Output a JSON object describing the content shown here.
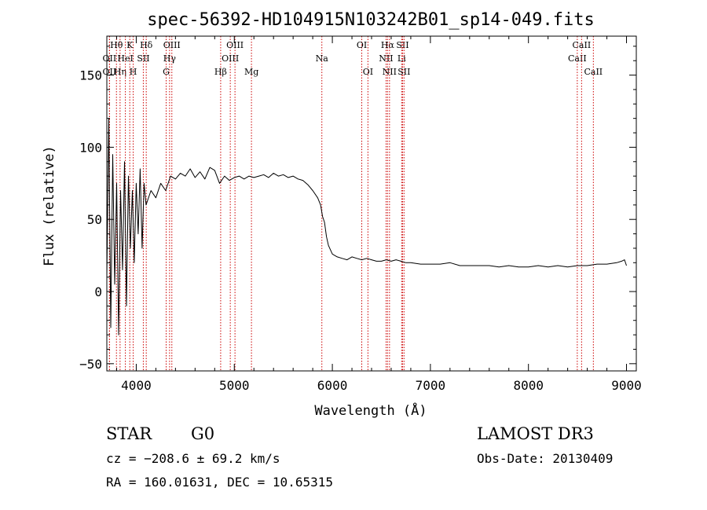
{
  "chart_data": {
    "type": "line",
    "title": "spec-56392-HD104915N103242B01_sp14-049.fits",
    "xlabel": "Wavelength (Å)",
    "ylabel": "Flux (relative)",
    "xlim": [
      3700,
      9100
    ],
    "ylim": [
      -55,
      177
    ],
    "xticks": [
      4000,
      5000,
      6000,
      7000,
      8000,
      9000
    ],
    "xtick_labels": [
      "4000",
      "5000",
      "6000",
      "7000",
      "8000",
      "9000"
    ],
    "yticks": [
      -50,
      0,
      50,
      100,
      150
    ],
    "ytick_labels": [
      "−50",
      "0",
      "50",
      "100",
      "150"
    ],
    "grid": false,
    "series": [
      {
        "name": "Flux",
        "x": [
          3700,
          3720,
          3740,
          3760,
          3780,
          3800,
          3820,
          3840,
          3860,
          3880,
          3900,
          3920,
          3940,
          3960,
          3980,
          4000,
          4020,
          4040,
          4060,
          4080,
          4100,
          4150,
          4200,
          4250,
          4300,
          4350,
          4400,
          4450,
          4500,
          4550,
          4600,
          4650,
          4700,
          4750,
          4800,
          4850,
          4900,
          4950,
          5000,
          5050,
          5100,
          5150,
          5200,
          5250,
          5300,
          5350,
          5400,
          5450,
          5500,
          5550,
          5600,
          5650,
          5700,
          5750,
          5800,
          5850,
          5880,
          5900,
          5920,
          5940,
          5960,
          5980,
          6000,
          6050,
          6100,
          6150,
          6200,
          6250,
          6300,
          6350,
          6400,
          6450,
          6500,
          6550,
          6600,
          6650,
          6700,
          6750,
          6800,
          6900,
          7000,
          7100,
          7200,
          7300,
          7400,
          7500,
          7600,
          7700,
          7800,
          7900,
          8000,
          8100,
          8200,
          8300,
          8400,
          8500,
          8600,
          8700,
          8800,
          8900,
          8950,
          8980,
          9000
        ],
        "y": [
          10,
          120,
          -25,
          95,
          5,
          75,
          -30,
          70,
          15,
          90,
          -10,
          80,
          30,
          70,
          20,
          75,
          40,
          85,
          30,
          75,
          60,
          70,
          65,
          75,
          70,
          80,
          78,
          82,
          80,
          85,
          79,
          83,
          78,
          86,
          84,
          75,
          80,
          77,
          79,
          80,
          78,
          80,
          79,
          80,
          81,
          79,
          82,
          80,
          81,
          79,
          80,
          78,
          77,
          74,
          70,
          65,
          60,
          52,
          48,
          38,
          32,
          29,
          26,
          24,
          23,
          22,
          24,
          23,
          22,
          23,
          22,
          21,
          21,
          22,
          21,
          22,
          21,
          20,
          20,
          19,
          19,
          19,
          20,
          18,
          18,
          18,
          18,
          17,
          18,
          17,
          17,
          18,
          17,
          18,
          17,
          18,
          18,
          19,
          19,
          20,
          21,
          22,
          18
        ]
      }
    ],
    "line_markers": [
      {
        "name": "Hθ",
        "x": 3798,
        "row": 1
      },
      {
        "name": "OII",
        "x": 3727,
        "row": 2
      },
      {
        "name": "OII",
        "x": 3727,
        "row": 3
      },
      {
        "name": "Hη",
        "x": 3835,
        "row": 3
      },
      {
        "name": "HeI",
        "x": 3889,
        "row": 2
      },
      {
        "name": "K",
        "x": 3934,
        "row": 1
      },
      {
        "name": "H",
        "x": 3969,
        "row": 3
      },
      {
        "name": "SII",
        "x": 4072,
        "row": 2
      },
      {
        "name": "Hδ",
        "x": 4102,
        "row": 1
      },
      {
        "name": "G",
        "x": 4305,
        "row": 3
      },
      {
        "name": "Hγ",
        "x": 4340,
        "row": 2
      },
      {
        "name": "OIII",
        "x": 4363,
        "row": 1
      },
      {
        "name": "Hβ",
        "x": 4861,
        "row": 3
      },
      {
        "name": "OIII",
        "x": 4959,
        "row": 2
      },
      {
        "name": "OIII",
        "x": 5007,
        "row": 1
      },
      {
        "name": "Mg",
        "x": 5175,
        "row": 3
      },
      {
        "name": "Na",
        "x": 5893,
        "row": 2
      },
      {
        "name": "OI",
        "x": 6300,
        "row": 1
      },
      {
        "name": "OI",
        "x": 6363,
        "row": 3
      },
      {
        "name": "NII",
        "x": 6548,
        "row": 2
      },
      {
        "name": "Hα",
        "x": 6563,
        "row": 1
      },
      {
        "name": "NII",
        "x": 6583,
        "row": 3
      },
      {
        "name": "Li",
        "x": 6707,
        "row": 2
      },
      {
        "name": "SII",
        "x": 6716,
        "row": 1
      },
      {
        "name": "SII",
        "x": 6731,
        "row": 3
      },
      {
        "name": "CaII",
        "x": 8498,
        "row": 2
      },
      {
        "name": "CaII",
        "x": 8542,
        "row": 1
      },
      {
        "name": "CaII",
        "x": 8662,
        "row": 3
      }
    ]
  },
  "info": {
    "class_label": "STAR",
    "subclass": "G0",
    "survey": "LAMOST DR3",
    "cz": "cz = −208.6 ± 69.2 km/s",
    "obs_date": "Obs-Date: 20130409",
    "coords": "RA = 160.01631, DEC =  10.65315"
  },
  "colors": {
    "axis": "#000000",
    "spectrum": "#000000",
    "marker_line": "#cc0000"
  }
}
